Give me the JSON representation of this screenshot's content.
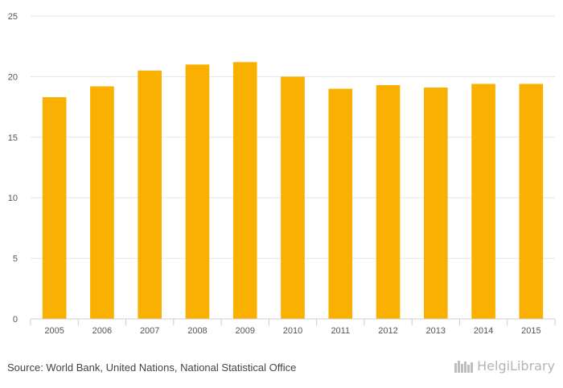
{
  "chart_data": {
    "type": "bar",
    "categories": [
      "2005",
      "2006",
      "2007",
      "2008",
      "2009",
      "2010",
      "2011",
      "2012",
      "2013",
      "2014",
      "2015"
    ],
    "values": [
      18.3,
      19.2,
      20.5,
      21.0,
      21.2,
      20.0,
      19.0,
      19.3,
      19.1,
      19.4,
      19.4
    ],
    "ylim": [
      0,
      25
    ],
    "yticks": [
      0,
      5,
      10,
      15,
      20,
      25
    ],
    "grid": true,
    "bar_color": "#f9b000"
  },
  "footer": {
    "source": "Source: World Bank, United Nations, National Statistical Office",
    "logo_text": "HelgiLibrary"
  }
}
